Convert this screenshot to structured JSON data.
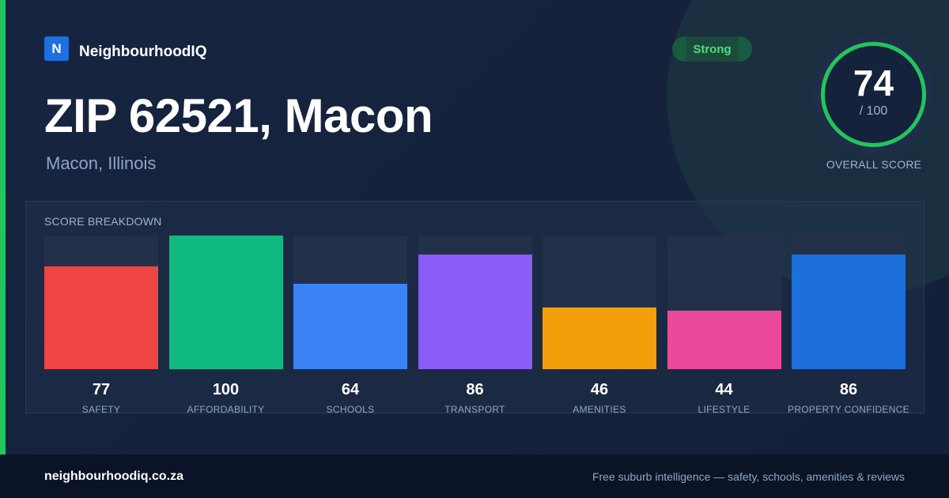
{
  "brand": {
    "logo_letter": "N",
    "name": "NeighbourhoodIQ"
  },
  "header": {
    "title": "ZIP 62521, Macon",
    "subtitle": "Macon, Illinois"
  },
  "badge": {
    "label": "Strong",
    "color": "#4ade80"
  },
  "overall": {
    "value": "74",
    "max_label": "/ 100",
    "label": "OVERALL SCORE",
    "score": 74,
    "ring_color": "#22c55e"
  },
  "breakdown": {
    "title": "SCORE BREAKDOWN",
    "items": [
      {
        "value": "77",
        "score": 77,
        "label": "SAFETY",
        "color": "#ef4444"
      },
      {
        "value": "100",
        "score": 100,
        "label": "AFFORDABILITY",
        "color": "#10b981"
      },
      {
        "value": "64",
        "score": 64,
        "label": "SCHOOLS",
        "color": "#3b82f6"
      },
      {
        "value": "86",
        "score": 86,
        "label": "TRANSPORT",
        "color": "#8b5cf6"
      },
      {
        "value": "46",
        "score": 46,
        "label": "AMENITIES",
        "color": "#f59e0b"
      },
      {
        "value": "44",
        "score": 44,
        "label": "LIFESTYLE",
        "color": "#ec4899"
      },
      {
        "value": "86",
        "score": 86,
        "label": "PROPERTY CONFIDENCE",
        "color": "#1d6fdb"
      }
    ]
  },
  "footer": {
    "site": "neighbourhoodiq.co.za",
    "tagline": "Free suburb intelligence — safety, schools, amenities & reviews"
  }
}
